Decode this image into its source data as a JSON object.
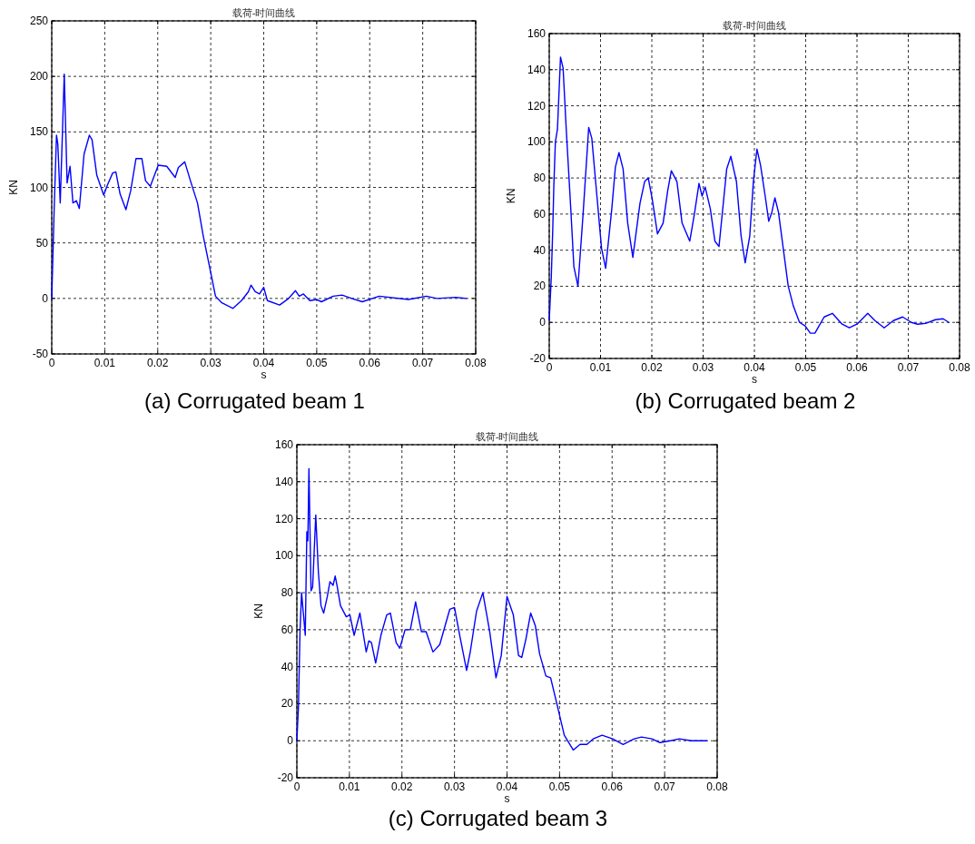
{
  "chart_data": [
    {
      "type": "line",
      "title": "载荷-时间曲线",
      "xlabel": "s",
      "ylabel": "KN",
      "annotations": [
        "(a) Corrugated beam 1"
      ],
      "color": "#0000ff",
      "grid": true,
      "xlim": [
        0,
        0.08
      ],
      "ylim": [
        -50,
        250
      ],
      "xticks": [
        0,
        0.01,
        0.02,
        0.03,
        0.04,
        0.05,
        0.06,
        0.07,
        0.08
      ],
      "yticks": [
        -50,
        0,
        50,
        100,
        150,
        200,
        250
      ],
      "x": [
        0,
        0.00046,
        0.0009,
        0.00115,
        0.0016,
        0.0021,
        0.00236,
        0.0029,
        0.00345,
        0.004,
        0.00466,
        0.0052,
        0.0061,
        0.0071,
        0.0076,
        0.0085,
        0.0098,
        0.0105,
        0.0115,
        0.0121,
        0.0129,
        0.014,
        0.0149,
        0.0159,
        0.017,
        0.0177,
        0.0186,
        0.0201,
        0.0217,
        0.0233,
        0.0239,
        0.0251,
        0.0263,
        0.0275,
        0.0286,
        0.0301,
        0.0309,
        0.0321,
        0.0342,
        0.0358,
        0.0371,
        0.0376,
        0.0384,
        0.0392,
        0.04,
        0.0407,
        0.043,
        0.0447,
        0.046,
        0.0467,
        0.0475,
        0.0487,
        0.05,
        0.0509,
        0.0531,
        0.0548,
        0.0566,
        0.0586,
        0.0618,
        0.0673,
        0.0707,
        0.0727,
        0.0762,
        0.0782
      ],
      "values": [
        0,
        81,
        147,
        139,
        86,
        162,
        202,
        104,
        119,
        86,
        88,
        81,
        130,
        147,
        143,
        111,
        93,
        102,
        113,
        114,
        94,
        80,
        97,
        126,
        126,
        106,
        101,
        120,
        119,
        109,
        118,
        123,
        104,
        86,
        56,
        21,
        2,
        -4,
        -9,
        -2,
        6,
        12,
        6,
        4,
        10,
        -2,
        -6,
        0,
        7,
        2,
        4,
        -2,
        -1,
        -3,
        2,
        3,
        0,
        -3,
        2,
        -1,
        2,
        0,
        1,
        0
      ]
    },
    {
      "type": "line",
      "title": "载荷-时间曲线",
      "xlabel": "s",
      "ylabel": "KN",
      "annotations": [
        "(b) Corrugated beam 2"
      ],
      "color": "#0000ff",
      "grid": true,
      "xlim": [
        0,
        0.08
      ],
      "ylim": [
        -20,
        160
      ],
      "xticks": [
        0,
        0.01,
        0.02,
        0.03,
        0.04,
        0.05,
        0.06,
        0.07,
        0.08
      ],
      "yticks": [
        -20,
        0,
        20,
        40,
        60,
        80,
        100,
        120,
        140,
        160
      ],
      "x": [
        0,
        0.0004,
        0.0007,
        0.0009,
        0.0012,
        0.0016,
        0.0022,
        0.0027,
        0.0033,
        0.0042,
        0.0048,
        0.0056,
        0.0066,
        0.0077,
        0.0083,
        0.0093,
        0.0102,
        0.011,
        0.0122,
        0.0129,
        0.0136,
        0.0144,
        0.0153,
        0.0163,
        0.0177,
        0.0186,
        0.0193,
        0.0201,
        0.0211,
        0.0222,
        0.0231,
        0.0238,
        0.0249,
        0.0259,
        0.0274,
        0.0283,
        0.0292,
        0.0298,
        0.0304,
        0.0314,
        0.0323,
        0.0331,
        0.0346,
        0.0354,
        0.0365,
        0.0374,
        0.0382,
        0.0391,
        0.0398,
        0.0405,
        0.0412,
        0.0421,
        0.0428,
        0.0434,
        0.044,
        0.0447,
        0.0459,
        0.0466,
        0.0476,
        0.0488,
        0.0499,
        0.0509,
        0.0518,
        0.0526,
        0.0536,
        0.0552,
        0.0571,
        0.0585,
        0.06,
        0.0621,
        0.0635,
        0.0653,
        0.0671,
        0.0689,
        0.0706,
        0.0718,
        0.0735,
        0.0753,
        0.0768,
        0.0779
      ],
      "values": [
        1,
        25,
        53,
        76,
        100,
        107,
        147,
        141,
        108,
        63,
        31,
        20,
        60,
        108,
        102,
        70,
        41,
        30,
        63,
        86,
        94,
        85,
        55,
        36,
        66,
        78,
        80,
        68,
        49,
        55,
        73,
        84,
        78,
        55,
        45,
        60,
        77,
        70,
        75,
        63,
        45,
        42,
        85,
        92,
        78,
        48,
        33,
        48,
        78,
        96,
        87,
        70,
        56,
        61,
        69,
        61,
        35,
        20,
        9,
        0,
        -2,
        -6,
        -6,
        -2,
        3,
        5,
        -1,
        -3,
        -1,
        5,
        1,
        -3,
        1,
        3,
        0,
        -1,
        -0.5,
        1.5,
        2,
        0
      ]
    },
    {
      "type": "line",
      "title": "载荷-时间曲线",
      "xlabel": "s",
      "ylabel": "KN",
      "annotations": [
        "(c) Corrugated beam 3"
      ],
      "color": "#0000ff",
      "grid": true,
      "xlim": [
        0,
        0.08
      ],
      "ylim": [
        -20,
        160
      ],
      "xticks": [
        0,
        0.01,
        0.02,
        0.03,
        0.04,
        0.05,
        0.06,
        0.07,
        0.08
      ],
      "yticks": [
        -20,
        0,
        20,
        40,
        60,
        80,
        100,
        120,
        140,
        160
      ],
      "x": [
        0,
        0.0003,
        0.0006,
        0.0009,
        0.0012,
        0.0013,
        0.0016,
        0.0019,
        0.0021,
        0.0023,
        0.0027,
        0.003,
        0.0036,
        0.0041,
        0.0046,
        0.0051,
        0.0058,
        0.0063,
        0.0069,
        0.0073,
        0.0077,
        0.0083,
        0.0094,
        0.0101,
        0.0109,
        0.012,
        0.0132,
        0.0137,
        0.0142,
        0.015,
        0.016,
        0.0171,
        0.0178,
        0.0189,
        0.0196,
        0.0206,
        0.0216,
        0.0226,
        0.0237,
        0.0246,
        0.0259,
        0.0272,
        0.0282,
        0.0291,
        0.03,
        0.031,
        0.0323,
        0.033,
        0.0342,
        0.0354,
        0.0367,
        0.0379,
        0.0389,
        0.04,
        0.0412,
        0.0422,
        0.0428,
        0.0436,
        0.0445,
        0.0454,
        0.0462,
        0.0474,
        0.0483,
        0.0494,
        0.0509,
        0.0526,
        0.0539,
        0.0552,
        0.0564,
        0.0581,
        0.0601,
        0.0621,
        0.0642,
        0.0656,
        0.0676,
        0.0691,
        0.0711,
        0.0728,
        0.0751,
        0.078
      ],
      "values": [
        0,
        18,
        59,
        80,
        70,
        67,
        57,
        113,
        108,
        147,
        81,
        83,
        122,
        91,
        73,
        69,
        78,
        86,
        84,
        89,
        83,
        73,
        67,
        68,
        57,
        69,
        48,
        54,
        53,
        42,
        57,
        68,
        69,
        53,
        50,
        60,
        60,
        75,
        59,
        59,
        48,
        52,
        62,
        71,
        72,
        57,
        38,
        48,
        70,
        80,
        59,
        34,
        46,
        78,
        68,
        46,
        45,
        55,
        69,
        62,
        47,
        35,
        34,
        21,
        3,
        -5,
        -2,
        -2,
        1,
        3,
        1,
        -2,
        1,
        2,
        1,
        -1,
        0,
        1,
        0,
        0
      ]
    }
  ]
}
